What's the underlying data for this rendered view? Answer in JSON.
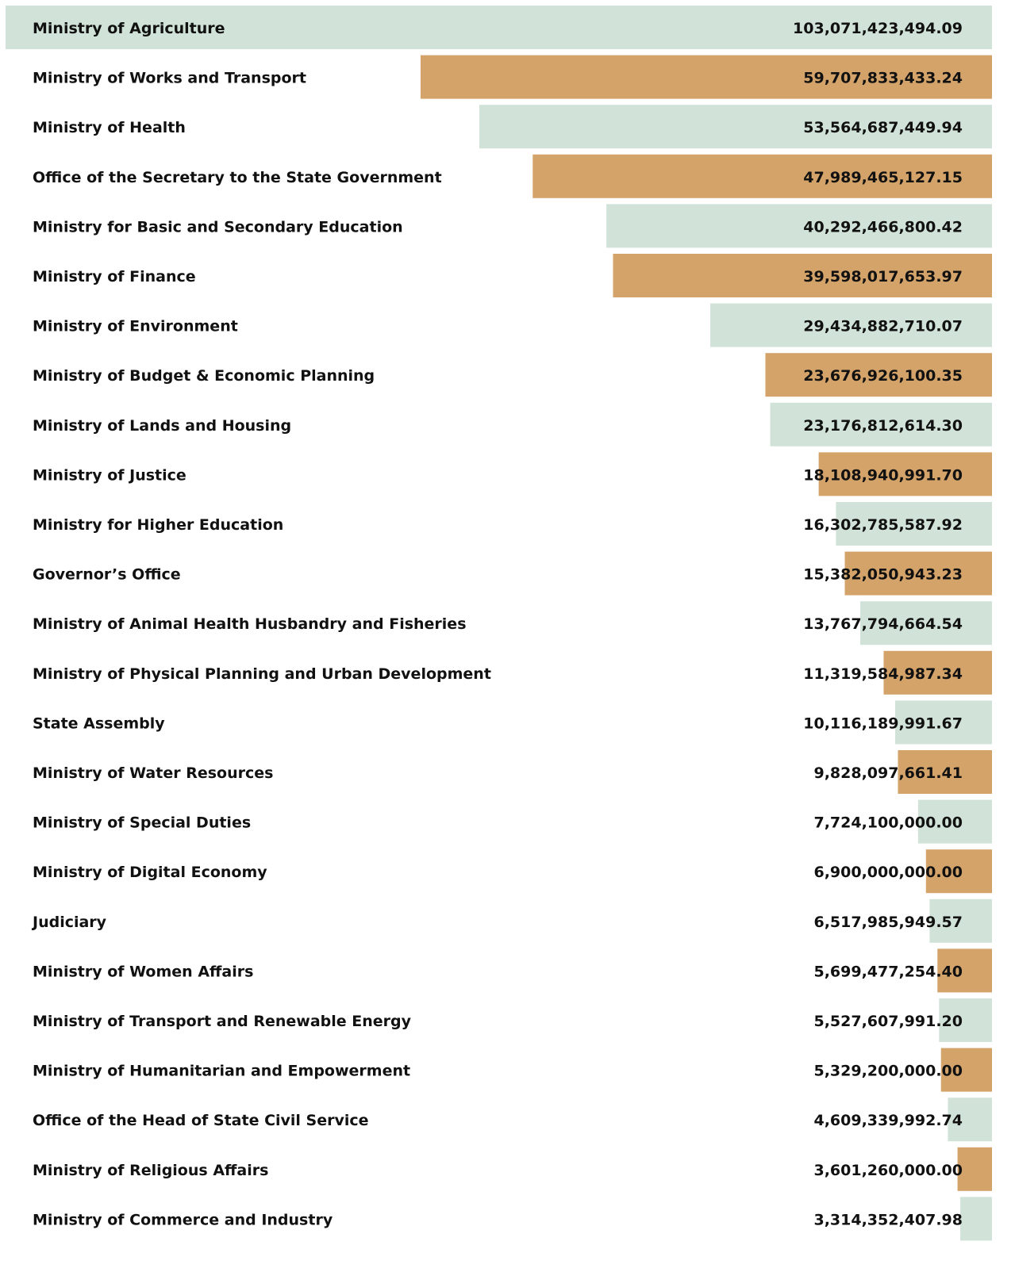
{
  "chart_data": {
    "type": "bar",
    "orientation": "horizontal",
    "colors": [
      "#d1e3d8",
      "#d4a369"
    ],
    "categories": [
      "Ministry of Agriculture",
      "Ministry of Works and Transport",
      "Ministry of Health",
      "Office of the Secretary to the State Government",
      "Ministry for Basic and Secondary Education",
      "Ministry of Finance",
      "Ministry of Environment",
      "Ministry of Budget & Economic Planning",
      "Ministry of Lands and Housing",
      "Ministry of Justice",
      "Ministry for Higher Education",
      "Governor’s Office",
      "Ministry of Animal Health Husbandry and Fisheries",
      "Ministry of Physical Planning and Urban Development",
      "State Assembly",
      "Ministry of Water Resources",
      "Ministry of Special Duties",
      "Ministry of Digital Economy",
      "Judiciary",
      "Ministry of Women Affairs",
      "Ministry of Transport and Renewable Energy",
      "Ministry of Humanitarian and Empowerment",
      "Office of the Head of State Civil Service",
      "Ministry of Religious Affairs",
      "Ministry of Commerce and Industry"
    ],
    "values": [
      103071423494.09,
      59707833433.24,
      53564687449.94,
      47989465127.15,
      40292466800.42,
      39598017653.97,
      29434882710.07,
      23676926100.35,
      23176812614.3,
      18108940991.7,
      16302785587.92,
      15382050943.23,
      13767794664.54,
      11319584987.34,
      10116189991.67,
      9828097661.41,
      7724100000.0,
      6900000000.0,
      6517985949.57,
      5699477254.4,
      5527607991.2,
      5329200000.0,
      4609339992.74,
      3601260000.0,
      3314352407.98
    ],
    "value_labels": [
      "103,071,423,494.09",
      "59,707,833,433.24",
      "53,564,687,449.94",
      "47,989,465,127.15",
      "40,292,466,800.42",
      "39,598,017,653.97",
      "29,434,882,710.07",
      "23,676,926,100.35",
      "23,176,812,614.30",
      "18,108,940,991.70",
      "16,302,785,587.92",
      "15,382,050,943.23",
      "13,767,794,664.54",
      "11,319,584,987.34",
      "10,116,189,991.67",
      "9,828,097,661.41",
      "7,724,100,000.00",
      "6,900,000,000.00",
      "6,517,985,949.57",
      "5,699,477,254.40",
      "5,527,607,991.20",
      "5,329,200,000.00",
      "4,609,339,992.74",
      "3,601,260,000.00",
      "3,314,352,407.98"
    ]
  }
}
